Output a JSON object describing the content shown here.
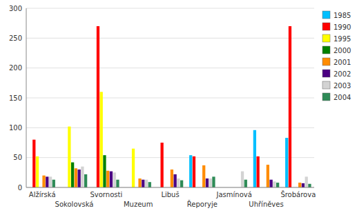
{
  "chart_data": {
    "type": "bar",
    "categories": [
      "Alžírská",
      "Sokolovská",
      "Svornosti",
      "Muzeum",
      "Libuš",
      "Řeporyje",
      "Jasmínová",
      "Uhříněves",
      "Šrobárova"
    ],
    "series": [
      {
        "name": "1985",
        "color": "#00bfff",
        "values": [
          0,
          0,
          0,
          0,
          0,
          54,
          0,
          96,
          83
        ]
      },
      {
        "name": "1990",
        "color": "#ff0000",
        "values": [
          80,
          0,
          270,
          0,
          75,
          52,
          0,
          52,
          270
        ]
      },
      {
        "name": "1995",
        "color": "#ffff00",
        "values": [
          52,
          102,
          160,
          65,
          0,
          0,
          0,
          0,
          0
        ]
      },
      {
        "name": "2000",
        "color": "#008000",
        "values": [
          0,
          42,
          54,
          0,
          0,
          0,
          0,
          0,
          0
        ]
      },
      {
        "name": "2001",
        "color": "#ff8c00",
        "values": [
          20,
          32,
          28,
          15,
          30,
          37,
          0,
          38,
          8
        ]
      },
      {
        "name": "2002",
        "color": "#4b0082",
        "values": [
          18,
          30,
          27,
          13,
          22,
          15,
          0,
          13,
          7
        ]
      },
      {
        "name": "2003",
        "color": "#d3d3d3",
        "values": [
          18,
          35,
          25,
          13,
          15,
          15,
          27,
          10,
          18
        ]
      },
      {
        "name": "2004",
        "color": "#2e8b57",
        "values": [
          13,
          22,
          13,
          9,
          12,
          18,
          13,
          8,
          6
        ]
      }
    ],
    "ylim": [
      0,
      300
    ],
    "yticks": [
      0,
      50,
      100,
      150,
      200,
      250,
      300
    ],
    "grid": true,
    "legend": "right"
  }
}
